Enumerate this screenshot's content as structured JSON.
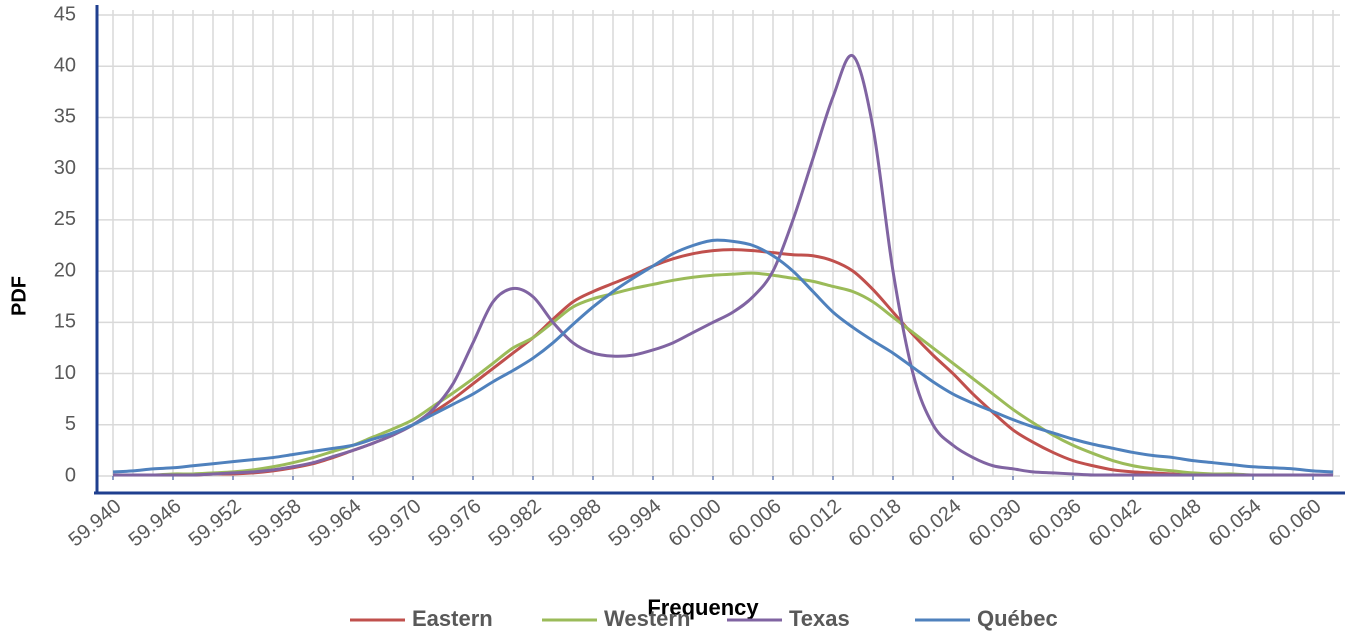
{
  "chart_data": {
    "type": "line",
    "x_label": "Frequency",
    "y_label": "PDF",
    "x": [
      59.94,
      59.942,
      59.944,
      59.946,
      59.948,
      59.95,
      59.952,
      59.954,
      59.956,
      59.958,
      59.96,
      59.962,
      59.964,
      59.966,
      59.968,
      59.97,
      59.972,
      59.974,
      59.976,
      59.978,
      59.98,
      59.982,
      59.984,
      59.986,
      59.988,
      59.99,
      59.992,
      59.994,
      59.996,
      59.998,
      60.0,
      60.002,
      60.004,
      60.006,
      60.008,
      60.01,
      60.012,
      60.014,
      60.016,
      60.018,
      60.02,
      60.022,
      60.024,
      60.026,
      60.028,
      60.03,
      60.032,
      60.034,
      60.036,
      60.038,
      60.04,
      60.042,
      60.044,
      60.046,
      60.048,
      60.05,
      60.052,
      60.054,
      60.056,
      60.058,
      60.06,
      60.062
    ],
    "series": [
      {
        "name": "Eastern",
        "color": "#c0504d",
        "values": [
          0.1,
          0.1,
          0.1,
          0.1,
          0.1,
          0.2,
          0.2,
          0.3,
          0.5,
          0.8,
          1.2,
          1.8,
          2.5,
          3.2,
          4.0,
          5.0,
          6.2,
          7.5,
          9.0,
          10.5,
          12.0,
          13.5,
          15.3,
          17.0,
          18.0,
          18.8,
          19.6,
          20.5,
          21.2,
          21.7,
          22.0,
          22.1,
          22.0,
          21.8,
          21.6,
          21.5,
          21.0,
          20.0,
          18.2,
          16.0,
          13.8,
          11.8,
          10.0,
          8.0,
          6.2,
          4.5,
          3.3,
          2.3,
          1.5,
          1.0,
          0.6,
          0.4,
          0.3,
          0.2,
          0.1,
          0.1,
          0.1,
          0.1,
          0.1,
          0.1,
          0.1,
          0.1
        ]
      },
      {
        "name": "Western",
        "color": "#9bbb59",
        "values": [
          0.1,
          0.1,
          0.1,
          0.2,
          0.2,
          0.3,
          0.4,
          0.6,
          0.9,
          1.3,
          1.8,
          2.4,
          3.0,
          3.8,
          4.6,
          5.5,
          6.8,
          8.1,
          9.5,
          11.0,
          12.5,
          13.5,
          15.0,
          16.5,
          17.3,
          17.8,
          18.3,
          18.7,
          19.1,
          19.4,
          19.6,
          19.7,
          19.8,
          19.6,
          19.3,
          19.0,
          18.5,
          18.0,
          17.0,
          15.5,
          14.0,
          12.5,
          11.0,
          9.5,
          8.0,
          6.5,
          5.2,
          4.0,
          3.0,
          2.2,
          1.5,
          1.0,
          0.7,
          0.5,
          0.3,
          0.2,
          0.2,
          0.1,
          0.1,
          0.1,
          0.1,
          0.1
        ]
      },
      {
        "name": "Texas",
        "color": "#8064a2",
        "values": [
          0.1,
          0.1,
          0.1,
          0.1,
          0.1,
          0.2,
          0.3,
          0.4,
          0.6,
          0.9,
          1.3,
          1.9,
          2.5,
          3.2,
          4.0,
          5.0,
          6.5,
          9.0,
          13.0,
          17.0,
          18.3,
          17.5,
          15.0,
          13.0,
          12.0,
          11.7,
          11.8,
          12.3,
          13.0,
          14.0,
          15.0,
          16.0,
          17.5,
          20.0,
          25.0,
          31.0,
          37.0,
          41.0,
          34.0,
          20.0,
          10.0,
          5.0,
          3.0,
          1.8,
          1.0,
          0.7,
          0.4,
          0.3,
          0.2,
          0.1,
          0.1,
          0.1,
          0.1,
          0.1,
          0.1,
          0.1,
          0.1,
          0.1,
          0.1,
          0.1,
          0.1,
          0.1
        ]
      },
      {
        "name": "Québec",
        "color": "#4f81bd",
        "values": [
          0.4,
          0.5,
          0.7,
          0.8,
          1.0,
          1.2,
          1.4,
          1.6,
          1.8,
          2.1,
          2.4,
          2.7,
          3.0,
          3.6,
          4.2,
          5.0,
          6.0,
          7.0,
          8.0,
          9.2,
          10.3,
          11.5,
          13.0,
          14.8,
          16.5,
          18.0,
          19.3,
          20.5,
          21.7,
          22.5,
          23.0,
          22.9,
          22.5,
          21.5,
          20.0,
          18.0,
          16.0,
          14.5,
          13.2,
          12.0,
          10.6,
          9.2,
          8.0,
          7.1,
          6.3,
          5.5,
          4.8,
          4.2,
          3.6,
          3.1,
          2.7,
          2.3,
          2.0,
          1.8,
          1.5,
          1.3,
          1.1,
          0.9,
          0.8,
          0.7,
          0.5,
          0.4
        ]
      }
    ],
    "xlim": [
      59.9384,
      60.0627
    ],
    "xticks": [
      {
        "value": 59.94,
        "label": "59.940"
      },
      {
        "value": 59.946,
        "label": "59.946"
      },
      {
        "value": 59.952,
        "label": "59.952"
      },
      {
        "value": 59.958,
        "label": "59.958"
      },
      {
        "value": 59.964,
        "label": "59.964"
      },
      {
        "value": 59.97,
        "label": "59.970"
      },
      {
        "value": 59.976,
        "label": "59.976"
      },
      {
        "value": 59.982,
        "label": "59.982"
      },
      {
        "value": 59.988,
        "label": "59.988"
      },
      {
        "value": 59.994,
        "label": "59.994"
      },
      {
        "value": 60.0,
        "label": "60.000"
      },
      {
        "value": 60.006,
        "label": "60.006"
      },
      {
        "value": 60.012,
        "label": "60.012"
      },
      {
        "value": 60.018,
        "label": "60.018"
      },
      {
        "value": 60.024,
        "label": "60.024"
      },
      {
        "value": 60.03,
        "label": "60.030"
      },
      {
        "value": 60.036,
        "label": "60.036"
      },
      {
        "value": 60.042,
        "label": "60.042"
      },
      {
        "value": 60.048,
        "label": "60.048"
      },
      {
        "value": 60.054,
        "label": "60.054"
      },
      {
        "value": 60.06,
        "label": "60.060"
      }
    ],
    "ylim": [
      0,
      45
    ],
    "yticks": [
      0,
      5,
      10,
      15,
      20,
      25,
      30,
      35,
      40,
      45
    ],
    "grid": true,
    "legend": "bottom"
  }
}
